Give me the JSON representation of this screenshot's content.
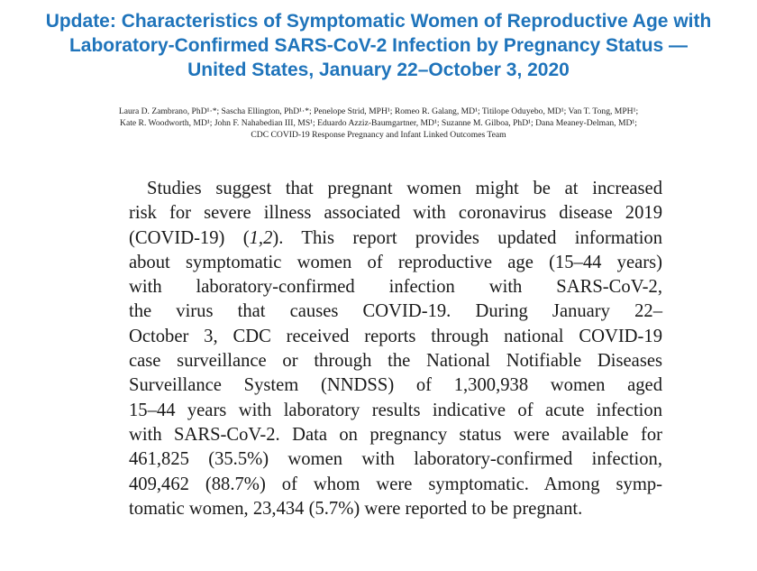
{
  "title": {
    "lines": [
      "Update: Characteristics of Symptomatic Women of Reproductive Age with",
      "Laboratory-Confirmed SARS-CoV-2 Infection by Pregnancy Status —",
      "United States, January 22–October 3, 2020"
    ]
  },
  "authors": {
    "lines": [
      "Laura D. Zambrano, PhD¹·*; Sascha Ellington, PhD¹·*; Penelope Strid, MPH¹; Romeo R. Galang, MD¹; Titilope Oduyebo, MD¹; Van T. Tong, MPH¹;",
      "Kate R. Woodworth, MD¹; John F. Nahabedian III, MS¹; Eduardo Azziz-Baumgartner, MD¹; Suzanne M. Gilboa, PhD¹; Dana Meaney-Delman, MD¹;",
      "CDC COVID-19 Response Pregnancy and Infant Linked Outcomes Team"
    ]
  },
  "abstract": {
    "lines": [
      "Studies suggest that pregnant women might be at increased",
      "risk for severe illness associated with coronavirus disease 2019",
      "(COVID-19) (1,2). This report provides updated information",
      "about symptomatic women of reproductive age (15–44 years)",
      "with laboratory-confirmed infection with SARS-CoV-2,",
      "the virus that causes COVID-19. During January 22–",
      "October 3, CDC received reports through national COVID-19",
      "case surveillance or through the National Notifiable Diseases",
      "Surveillance System (NNDSS) of 1,300,938 women aged",
      "15–44 years with laboratory results indicative of acute infection",
      "with SARS-CoV-2. Data on pregnancy status were available for",
      "461,825 (35.5%) women with laboratory-confirmed infection,",
      "409,462 (88.7%) of whom were symptomatic. Among symp-",
      "tomatic women, 23,434 (5.7%) were reported to be pregnant."
    ]
  }
}
